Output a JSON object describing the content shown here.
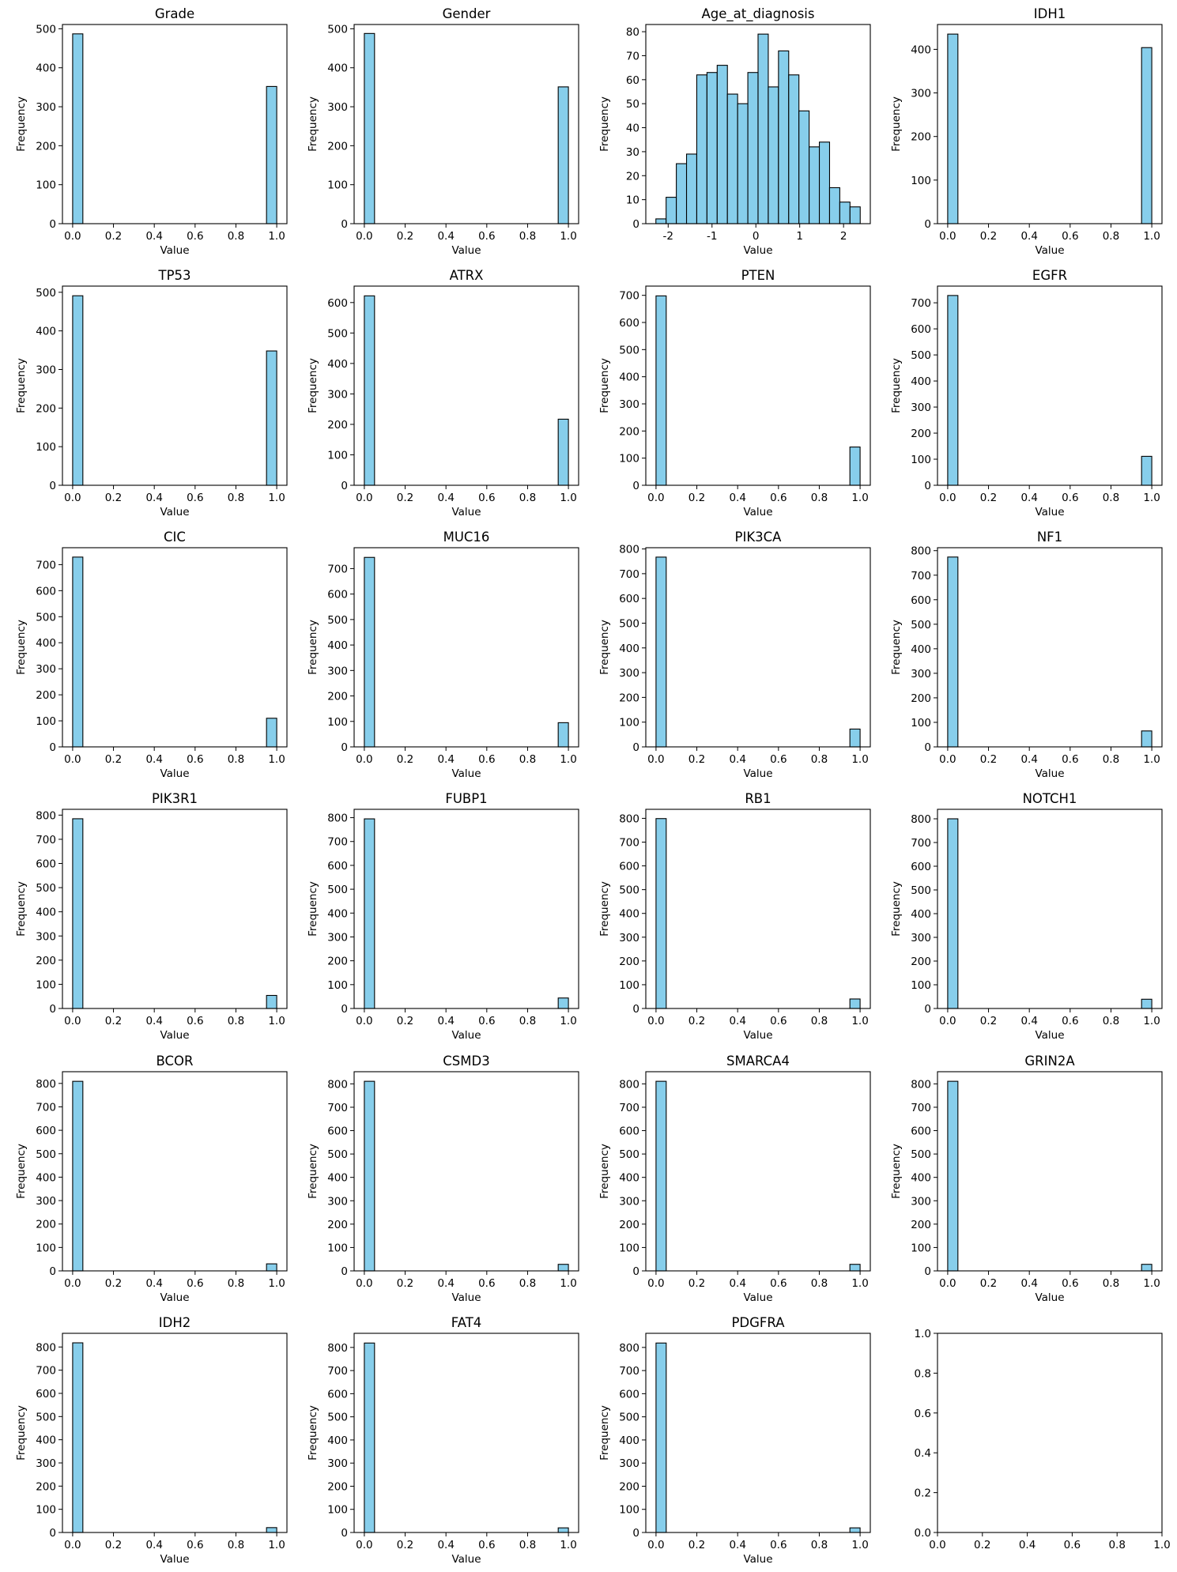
{
  "chart_data": [
    {
      "type": "bar",
      "title": "Grade",
      "xlabel": "Value",
      "ylabel": "Frequency",
      "xlim": [
        -0.05,
        1.05
      ],
      "ylim": [
        0,
        511
      ],
      "xticks": [
        0,
        0.2,
        0.4,
        0.6,
        0.8,
        1.0
      ],
      "yticks": [
        0,
        100,
        200,
        300,
        400,
        500
      ],
      "bins": 20,
      "bin_range": [
        0,
        1
      ],
      "values": [
        487,
        0,
        0,
        0,
        0,
        0,
        0,
        0,
        0,
        0,
        0,
        0,
        0,
        0,
        0,
        0,
        0,
        0,
        0,
        352
      ]
    },
    {
      "type": "bar",
      "title": "Gender",
      "xlabel": "Value",
      "ylabel": "Frequency",
      "xlim": [
        -0.05,
        1.05
      ],
      "ylim": [
        0,
        511
      ],
      "xticks": [
        0,
        0.2,
        0.4,
        0.6,
        0.8,
        1.0
      ],
      "yticks": [
        0,
        100,
        200,
        300,
        400,
        500
      ],
      "bins": 20,
      "bin_range": [
        0,
        1
      ],
      "values": [
        488,
        0,
        0,
        0,
        0,
        0,
        0,
        0,
        0,
        0,
        0,
        0,
        0,
        0,
        0,
        0,
        0,
        0,
        0,
        351
      ]
    },
    {
      "type": "bar",
      "title": "Age_at_diagnosis",
      "xlabel": "Value",
      "ylabel": "Frequency",
      "xlim": [
        -2.51,
        2.61
      ],
      "ylim": [
        0,
        83
      ],
      "xticks": [
        -2,
        -1,
        0,
        1,
        2
      ],
      "yticks": [
        0,
        10,
        20,
        30,
        40,
        50,
        60,
        70,
        80
      ],
      "bins": 20,
      "bin_range": [
        -2.28,
        2.38
      ],
      "values": [
        2,
        11,
        25,
        29,
        62,
        63,
        66,
        54,
        50,
        63,
        79,
        57,
        72,
        62,
        47,
        32,
        34,
        15,
        9,
        7
      ]
    },
    {
      "type": "bar",
      "title": "IDH1",
      "xlabel": "Value",
      "ylabel": "Frequency",
      "xlim": [
        -0.05,
        1.05
      ],
      "ylim": [
        0,
        457
      ],
      "xticks": [
        0,
        0.2,
        0.4,
        0.6,
        0.8,
        1.0
      ],
      "yticks": [
        0,
        100,
        200,
        300,
        400
      ],
      "bins": 20,
      "bin_range": [
        0,
        1
      ],
      "values": [
        435,
        0,
        0,
        0,
        0,
        0,
        0,
        0,
        0,
        0,
        0,
        0,
        0,
        0,
        0,
        0,
        0,
        0,
        0,
        404
      ]
    },
    {
      "type": "bar",
      "title": "TP53",
      "xlabel": "Value",
      "ylabel": "Frequency",
      "xlim": [
        -0.05,
        1.05
      ],
      "ylim": [
        0,
        516
      ],
      "xticks": [
        0,
        0.2,
        0.4,
        0.6,
        0.8,
        1.0
      ],
      "yticks": [
        0,
        100,
        200,
        300,
        400,
        500
      ],
      "bins": 20,
      "bin_range": [
        0,
        1
      ],
      "values": [
        491,
        0,
        0,
        0,
        0,
        0,
        0,
        0,
        0,
        0,
        0,
        0,
        0,
        0,
        0,
        0,
        0,
        0,
        0,
        348
      ]
    },
    {
      "type": "bar",
      "title": "ATRX",
      "xlabel": "Value",
      "ylabel": "Frequency",
      "xlim": [
        -0.05,
        1.05
      ],
      "ylim": [
        0,
        654
      ],
      "xticks": [
        0,
        0.2,
        0.4,
        0.6,
        0.8,
        1.0
      ],
      "yticks": [
        0,
        100,
        200,
        300,
        400,
        500,
        600
      ],
      "bins": 20,
      "bin_range": [
        0,
        1
      ],
      "values": [
        622,
        0,
        0,
        0,
        0,
        0,
        0,
        0,
        0,
        0,
        0,
        0,
        0,
        0,
        0,
        0,
        0,
        0,
        0,
        217
      ]
    },
    {
      "type": "bar",
      "title": "PTEN",
      "xlabel": "Value",
      "ylabel": "Frequency",
      "xlim": [
        -0.05,
        1.05
      ],
      "ylim": [
        0,
        734
      ],
      "xticks": [
        0,
        0.2,
        0.4,
        0.6,
        0.8,
        1.0
      ],
      "yticks": [
        0,
        100,
        200,
        300,
        400,
        500,
        600,
        700
      ],
      "bins": 20,
      "bin_range": [
        0,
        1
      ],
      "values": [
        698,
        0,
        0,
        0,
        0,
        0,
        0,
        0,
        0,
        0,
        0,
        0,
        0,
        0,
        0,
        0,
        0,
        0,
        0,
        141
      ]
    },
    {
      "type": "bar",
      "title": "EGFR",
      "xlabel": "Value",
      "ylabel": "Frequency",
      "xlim": [
        -0.05,
        1.05
      ],
      "ylim": [
        0,
        764
      ],
      "xticks": [
        0,
        0.2,
        0.4,
        0.6,
        0.8,
        1.0
      ],
      "yticks": [
        0,
        100,
        200,
        300,
        400,
        500,
        600,
        700
      ],
      "bins": 20,
      "bin_range": [
        0,
        1
      ],
      "values": [
        728,
        0,
        0,
        0,
        0,
        0,
        0,
        0,
        0,
        0,
        0,
        0,
        0,
        0,
        0,
        0,
        0,
        0,
        0,
        111
      ]
    },
    {
      "type": "bar",
      "title": "CIC",
      "xlabel": "Value",
      "ylabel": "Frequency",
      "xlim": [
        -0.05,
        1.05
      ],
      "ylim": [
        0,
        765
      ],
      "xticks": [
        0,
        0.2,
        0.4,
        0.6,
        0.8,
        1.0
      ],
      "yticks": [
        0,
        100,
        200,
        300,
        400,
        500,
        600,
        700
      ],
      "bins": 20,
      "bin_range": [
        0,
        1
      ],
      "values": [
        729,
        0,
        0,
        0,
        0,
        0,
        0,
        0,
        0,
        0,
        0,
        0,
        0,
        0,
        0,
        0,
        0,
        0,
        0,
        110
      ]
    },
    {
      "type": "bar",
      "title": "MUC16",
      "xlabel": "Value",
      "ylabel": "Frequency",
      "xlim": [
        -0.05,
        1.05
      ],
      "ylim": [
        0,
        782
      ],
      "xticks": [
        0,
        0.2,
        0.4,
        0.6,
        0.8,
        1.0
      ],
      "yticks": [
        0,
        100,
        200,
        300,
        400,
        500,
        600,
        700
      ],
      "bins": 20,
      "bin_range": [
        0,
        1
      ],
      "values": [
        744,
        0,
        0,
        0,
        0,
        0,
        0,
        0,
        0,
        0,
        0,
        0,
        0,
        0,
        0,
        0,
        0,
        0,
        0,
        95
      ]
    },
    {
      "type": "bar",
      "title": "PIK3CA",
      "xlabel": "Value",
      "ylabel": "Frequency",
      "xlim": [
        -0.05,
        1.05
      ],
      "ylim": [
        0,
        805
      ],
      "xticks": [
        0,
        0.2,
        0.4,
        0.6,
        0.8,
        1.0
      ],
      "yticks": [
        0,
        100,
        200,
        300,
        400,
        500,
        600,
        700,
        800
      ],
      "bins": 20,
      "bin_range": [
        0,
        1
      ],
      "values": [
        767,
        0,
        0,
        0,
        0,
        0,
        0,
        0,
        0,
        0,
        0,
        0,
        0,
        0,
        0,
        0,
        0,
        0,
        0,
        72
      ]
    },
    {
      "type": "bar",
      "title": "NF1",
      "xlabel": "Value",
      "ylabel": "Frequency",
      "xlim": [
        -0.05,
        1.05
      ],
      "ylim": [
        0,
        812
      ],
      "xticks": [
        0,
        0.2,
        0.4,
        0.6,
        0.8,
        1.0
      ],
      "yticks": [
        0,
        100,
        200,
        300,
        400,
        500,
        600,
        700,
        800
      ],
      "bins": 20,
      "bin_range": [
        0,
        1
      ],
      "values": [
        774,
        0,
        0,
        0,
        0,
        0,
        0,
        0,
        0,
        0,
        0,
        0,
        0,
        0,
        0,
        0,
        0,
        0,
        0,
        65
      ]
    },
    {
      "type": "bar",
      "title": "PIK3R1",
      "xlabel": "Value",
      "ylabel": "Frequency",
      "xlim": [
        -0.05,
        1.05
      ],
      "ylim": [
        0,
        824
      ],
      "xticks": [
        0,
        0.2,
        0.4,
        0.6,
        0.8,
        1.0
      ],
      "yticks": [
        0,
        100,
        200,
        300,
        400,
        500,
        600,
        700,
        800
      ],
      "bins": 20,
      "bin_range": [
        0,
        1
      ],
      "values": [
        785,
        0,
        0,
        0,
        0,
        0,
        0,
        0,
        0,
        0,
        0,
        0,
        0,
        0,
        0,
        0,
        0,
        0,
        0,
        54
      ]
    },
    {
      "type": "bar",
      "title": "FUBP1",
      "xlabel": "Value",
      "ylabel": "Frequency",
      "xlim": [
        -0.05,
        1.05
      ],
      "ylim": [
        0,
        835
      ],
      "xticks": [
        0,
        0.2,
        0.4,
        0.6,
        0.8,
        1.0
      ],
      "yticks": [
        0,
        100,
        200,
        300,
        400,
        500,
        600,
        700,
        800
      ],
      "bins": 20,
      "bin_range": [
        0,
        1
      ],
      "values": [
        795,
        0,
        0,
        0,
        0,
        0,
        0,
        0,
        0,
        0,
        0,
        0,
        0,
        0,
        0,
        0,
        0,
        0,
        0,
        44
      ]
    },
    {
      "type": "bar",
      "title": "RB1",
      "xlabel": "Value",
      "ylabel": "Frequency",
      "xlim": [
        -0.05,
        1.05
      ],
      "ylim": [
        0,
        838
      ],
      "xticks": [
        0,
        0.2,
        0.4,
        0.6,
        0.8,
        1.0
      ],
      "yticks": [
        0,
        100,
        200,
        300,
        400,
        500,
        600,
        700,
        800
      ],
      "bins": 20,
      "bin_range": [
        0,
        1
      ],
      "values": [
        799,
        0,
        0,
        0,
        0,
        0,
        0,
        0,
        0,
        0,
        0,
        0,
        0,
        0,
        0,
        0,
        0,
        0,
        0,
        40
      ]
    },
    {
      "type": "bar",
      "title": "NOTCH1",
      "xlabel": "Value",
      "ylabel": "Frequency",
      "xlim": [
        -0.05,
        1.05
      ],
      "ylim": [
        0,
        840
      ],
      "xticks": [
        0,
        0.2,
        0.4,
        0.6,
        0.8,
        1.0
      ],
      "yticks": [
        0,
        100,
        200,
        300,
        400,
        500,
        600,
        700,
        800
      ],
      "bins": 20,
      "bin_range": [
        0,
        1
      ],
      "values": [
        800,
        0,
        0,
        0,
        0,
        0,
        0,
        0,
        0,
        0,
        0,
        0,
        0,
        0,
        0,
        0,
        0,
        0,
        0,
        39
      ]
    },
    {
      "type": "bar",
      "title": "BCOR",
      "xlabel": "Value",
      "ylabel": "Frequency",
      "xlim": [
        -0.05,
        1.05
      ],
      "ylim": [
        0,
        850
      ],
      "xticks": [
        0,
        0.2,
        0.4,
        0.6,
        0.8,
        1.0
      ],
      "yticks": [
        0,
        100,
        200,
        300,
        400,
        500,
        600,
        700,
        800
      ],
      "bins": 20,
      "bin_range": [
        0,
        1
      ],
      "values": [
        809,
        0,
        0,
        0,
        0,
        0,
        0,
        0,
        0,
        0,
        0,
        0,
        0,
        0,
        0,
        0,
        0,
        0,
        0,
        30
      ]
    },
    {
      "type": "bar",
      "title": "CSMD3",
      "xlabel": "Value",
      "ylabel": "Frequency",
      "xlim": [
        -0.05,
        1.05
      ],
      "ylim": [
        0,
        852
      ],
      "xticks": [
        0,
        0.2,
        0.4,
        0.6,
        0.8,
        1.0
      ],
      "yticks": [
        0,
        100,
        200,
        300,
        400,
        500,
        600,
        700,
        800
      ],
      "bins": 20,
      "bin_range": [
        0,
        1
      ],
      "values": [
        811,
        0,
        0,
        0,
        0,
        0,
        0,
        0,
        0,
        0,
        0,
        0,
        0,
        0,
        0,
        0,
        0,
        0,
        0,
        28
      ]
    },
    {
      "type": "bar",
      "title": "SMARCA4",
      "xlabel": "Value",
      "ylabel": "Frequency",
      "xlim": [
        -0.05,
        1.05
      ],
      "ylim": [
        0,
        852
      ],
      "xticks": [
        0,
        0.2,
        0.4,
        0.6,
        0.8,
        1.0
      ],
      "yticks": [
        0,
        100,
        200,
        300,
        400,
        500,
        600,
        700,
        800
      ],
      "bins": 20,
      "bin_range": [
        0,
        1
      ],
      "values": [
        811,
        0,
        0,
        0,
        0,
        0,
        0,
        0,
        0,
        0,
        0,
        0,
        0,
        0,
        0,
        0,
        0,
        0,
        0,
        28
      ]
    },
    {
      "type": "bar",
      "title": "GRIN2A",
      "xlabel": "Value",
      "ylabel": "Frequency",
      "xlim": [
        -0.05,
        1.05
      ],
      "ylim": [
        0,
        852
      ],
      "xticks": [
        0,
        0.2,
        0.4,
        0.6,
        0.8,
        1.0
      ],
      "yticks": [
        0,
        100,
        200,
        300,
        400,
        500,
        600,
        700,
        800
      ],
      "bins": 20,
      "bin_range": [
        0,
        1
      ],
      "values": [
        811,
        0,
        0,
        0,
        0,
        0,
        0,
        0,
        0,
        0,
        0,
        0,
        0,
        0,
        0,
        0,
        0,
        0,
        0,
        28
      ]
    },
    {
      "type": "bar",
      "title": "IDH2",
      "xlabel": "Value",
      "ylabel": "Frequency",
      "xlim": [
        -0.05,
        1.05
      ],
      "ylim": [
        0,
        859
      ],
      "xticks": [
        0,
        0.2,
        0.4,
        0.6,
        0.8,
        1.0
      ],
      "yticks": [
        0,
        100,
        200,
        300,
        400,
        500,
        600,
        700,
        800
      ],
      "bins": 20,
      "bin_range": [
        0,
        1
      ],
      "values": [
        818,
        0,
        0,
        0,
        0,
        0,
        0,
        0,
        0,
        0,
        0,
        0,
        0,
        0,
        0,
        0,
        0,
        0,
        0,
        21
      ]
    },
    {
      "type": "bar",
      "title": "FAT4",
      "xlabel": "Value",
      "ylabel": "Frequency",
      "xlim": [
        -0.05,
        1.05
      ],
      "ylim": [
        0,
        861
      ],
      "xticks": [
        0,
        0.2,
        0.4,
        0.6,
        0.8,
        1.0
      ],
      "yticks": [
        0,
        100,
        200,
        300,
        400,
        500,
        600,
        700,
        800
      ],
      "bins": 20,
      "bin_range": [
        0,
        1
      ],
      "values": [
        819,
        0,
        0,
        0,
        0,
        0,
        0,
        0,
        0,
        0,
        0,
        0,
        0,
        0,
        0,
        0,
        0,
        0,
        0,
        20
      ]
    },
    {
      "type": "bar",
      "title": "PDGFRA",
      "xlabel": "Value",
      "ylabel": "Frequency",
      "xlim": [
        -0.05,
        1.05
      ],
      "ylim": [
        0,
        861
      ],
      "xticks": [
        0,
        0.2,
        0.4,
        0.6,
        0.8,
        1.0
      ],
      "yticks": [
        0,
        100,
        200,
        300,
        400,
        500,
        600,
        700,
        800
      ],
      "bins": 20,
      "bin_range": [
        0,
        1
      ],
      "values": [
        819,
        0,
        0,
        0,
        0,
        0,
        0,
        0,
        0,
        0,
        0,
        0,
        0,
        0,
        0,
        0,
        0,
        0,
        0,
        20
      ]
    },
    {
      "type": "bar",
      "title": "",
      "xlabel": "",
      "ylabel": "",
      "xlim": [
        0,
        1
      ],
      "ylim": [
        0,
        1
      ],
      "xticks": [
        0,
        0.2,
        0.4,
        0.6,
        0.8,
        1.0
      ],
      "yticks": [
        0,
        0.2,
        0.4,
        0.6,
        0.8,
        1.0
      ],
      "bins": 0,
      "bin_range": [
        0,
        1
      ],
      "values": []
    }
  ],
  "colors": {
    "bar_fill": "#87ceeb",
    "bar_edge": "#000000"
  }
}
